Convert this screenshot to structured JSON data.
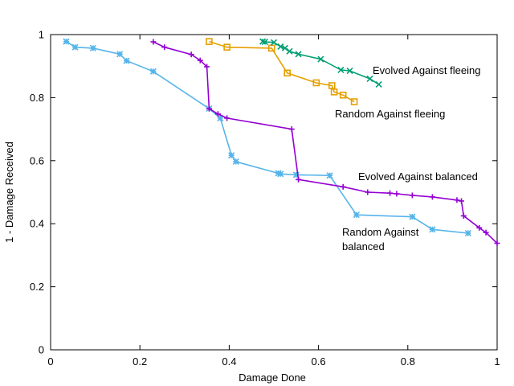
{
  "chart_data": {
    "type": "line",
    "title": "",
    "xlabel": "Damage Done",
    "ylabel": "1 - Damage Received",
    "xlim": [
      0,
      1
    ],
    "ylim": [
      0,
      1
    ],
    "xticks": [
      0,
      0.2,
      0.4,
      0.6,
      0.8,
      1
    ],
    "yticks": [
      0,
      0.2,
      0.4,
      0.6,
      0.8,
      1
    ],
    "xtick_labels": [
      "0",
      "0.2",
      "0.4",
      "0.6",
      "0.8",
      "1"
    ],
    "ytick_labels": [
      "0",
      "0.2",
      "0.4",
      "0.6",
      "0.8",
      "1"
    ],
    "grid": false,
    "series": [
      {
        "name": "Random Against balanced",
        "label_lines": [
          "Random Against",
          "balanced"
        ],
        "color": "#56b4e9",
        "marker": "asterisk",
        "x": [
          0.035,
          0.055,
          0.095,
          0.155,
          0.17,
          0.23,
          0.355,
          0.38,
          0.405,
          0.415,
          0.51,
          0.515,
          0.55,
          0.625,
          0.685,
          0.81,
          0.855,
          0.935
        ],
        "y": [
          0.978,
          0.96,
          0.957,
          0.938,
          0.917,
          0.883,
          0.765,
          0.735,
          0.617,
          0.597,
          0.56,
          0.558,
          0.555,
          0.553,
          0.428,
          0.422,
          0.382,
          0.37
        ]
      },
      {
        "name": "Evolved Against balanced",
        "label_lines": [
          "Evolved Against balanced"
        ],
        "color": "#9400d3",
        "marker": "plus",
        "x": [
          0.23,
          0.255,
          0.315,
          0.335,
          0.35,
          0.355,
          0.375,
          0.395,
          0.54,
          0.555,
          0.655,
          0.71,
          0.76,
          0.775,
          0.81,
          0.855,
          0.91,
          0.92,
          0.925,
          0.96,
          0.975,
          1.0
        ],
        "y": [
          0.977,
          0.96,
          0.937,
          0.918,
          0.898,
          0.765,
          0.748,
          0.735,
          0.7,
          0.54,
          0.517,
          0.5,
          0.497,
          0.495,
          0.49,
          0.485,
          0.475,
          0.472,
          0.425,
          0.387,
          0.372,
          0.338
        ]
      },
      {
        "name": "Random Against fleeing",
        "label_lines": [
          "Random Against fleeing"
        ],
        "color": "#e69f00",
        "marker": "square",
        "x": [
          0.355,
          0.395,
          0.495,
          0.53,
          0.595,
          0.63,
          0.635,
          0.655,
          0.68
        ],
        "y": [
          0.978,
          0.96,
          0.957,
          0.878,
          0.847,
          0.838,
          0.818,
          0.808,
          0.787
        ]
      },
      {
        "name": "Evolved Against fleeing",
        "label_lines": [
          "Evolved Against fleeing"
        ],
        "color": "#009e73",
        "marker": "cross",
        "x": [
          0.475,
          0.48,
          0.5,
          0.515,
          0.525,
          0.535,
          0.555,
          0.605,
          0.65,
          0.67,
          0.715,
          0.735
        ],
        "y": [
          0.978,
          0.977,
          0.975,
          0.962,
          0.957,
          0.947,
          0.938,
          0.922,
          0.888,
          0.885,
          0.86,
          0.842
        ]
      }
    ]
  }
}
